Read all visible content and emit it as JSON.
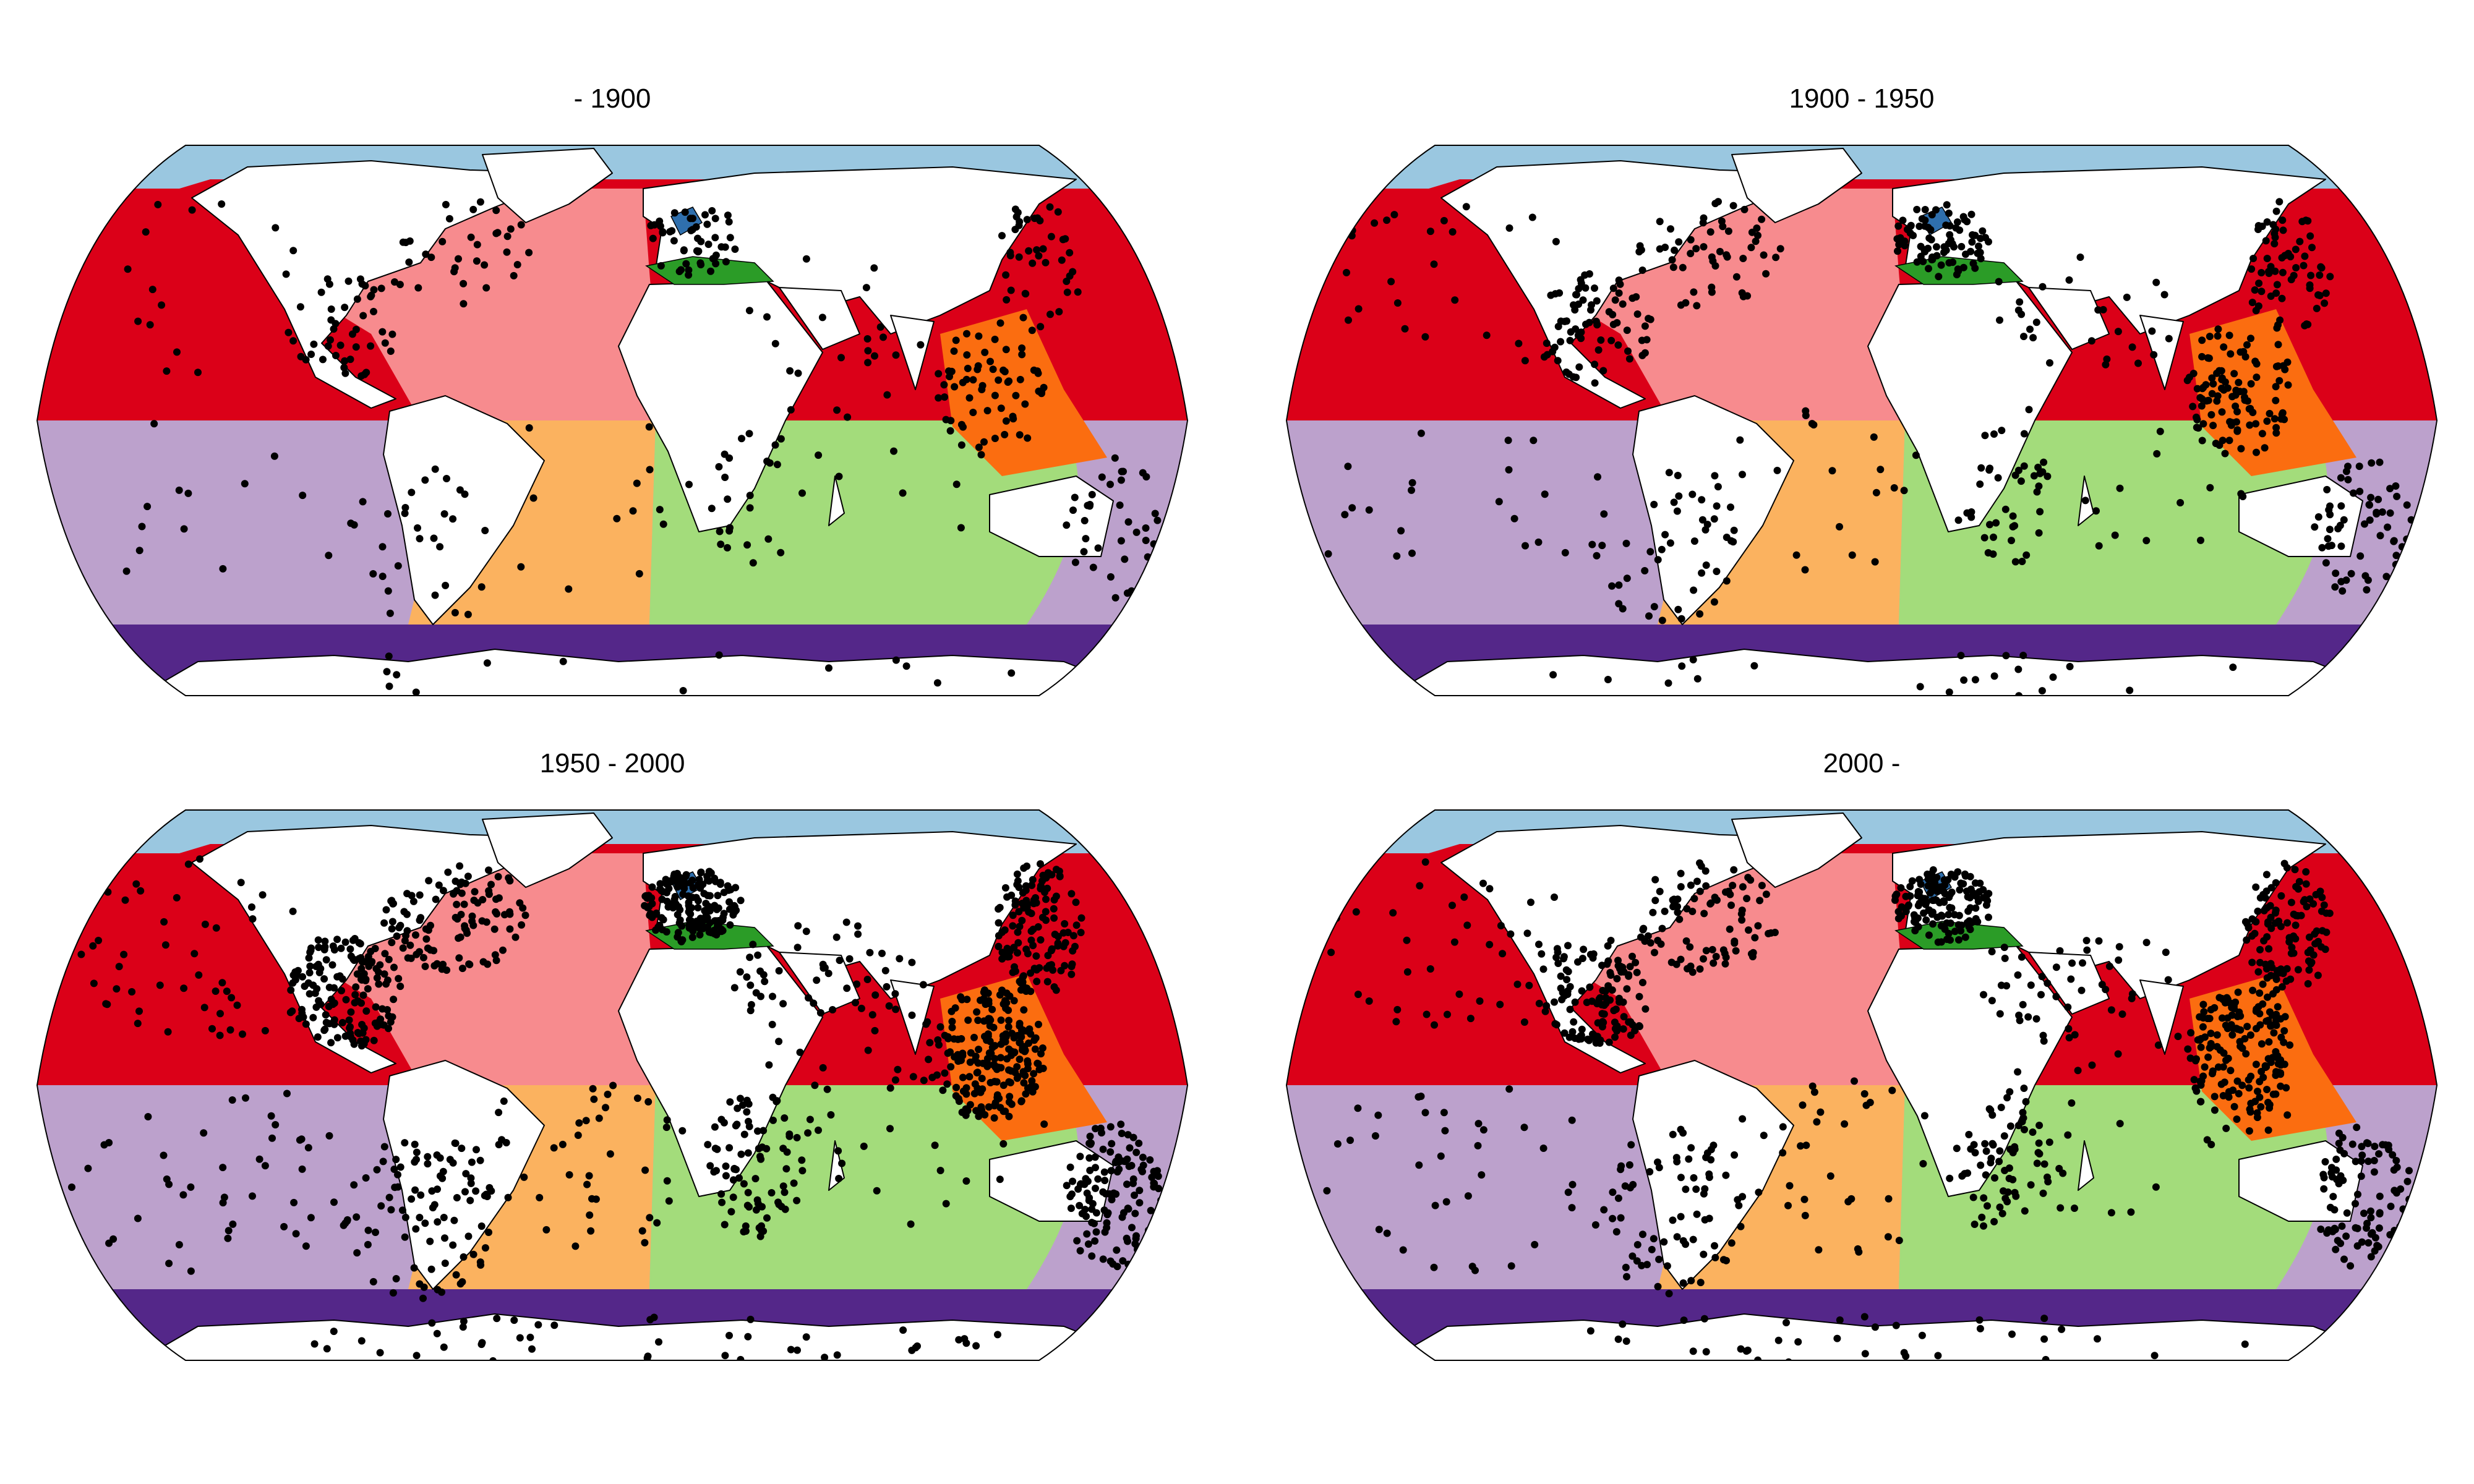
{
  "panels": [
    {
      "title": "- 1900",
      "dot_density": 1
    },
    {
      "title": "1900 - 1950",
      "dot_density": 1.6
    },
    {
      "title": "1950 - 2000",
      "dot_density": 3.2
    },
    {
      "title": "2000 -",
      "dot_density": 2.6
    }
  ],
  "colors": {
    "arctic": "#9ac7e0",
    "baltic": "#2f6fad",
    "north_atlantic": "#f78b8e",
    "mediterranean": "#2b9c27",
    "north_pacific": "#db0018",
    "indo_pacific": "#fb6d10",
    "south_pacific": "#bca1cc",
    "south_atlantic": "#fbb25f",
    "indian_ocean": "#a3dc7b",
    "southern_ocean": "#542789",
    "land": "#ffffff",
    "dots": "#000000"
  }
}
